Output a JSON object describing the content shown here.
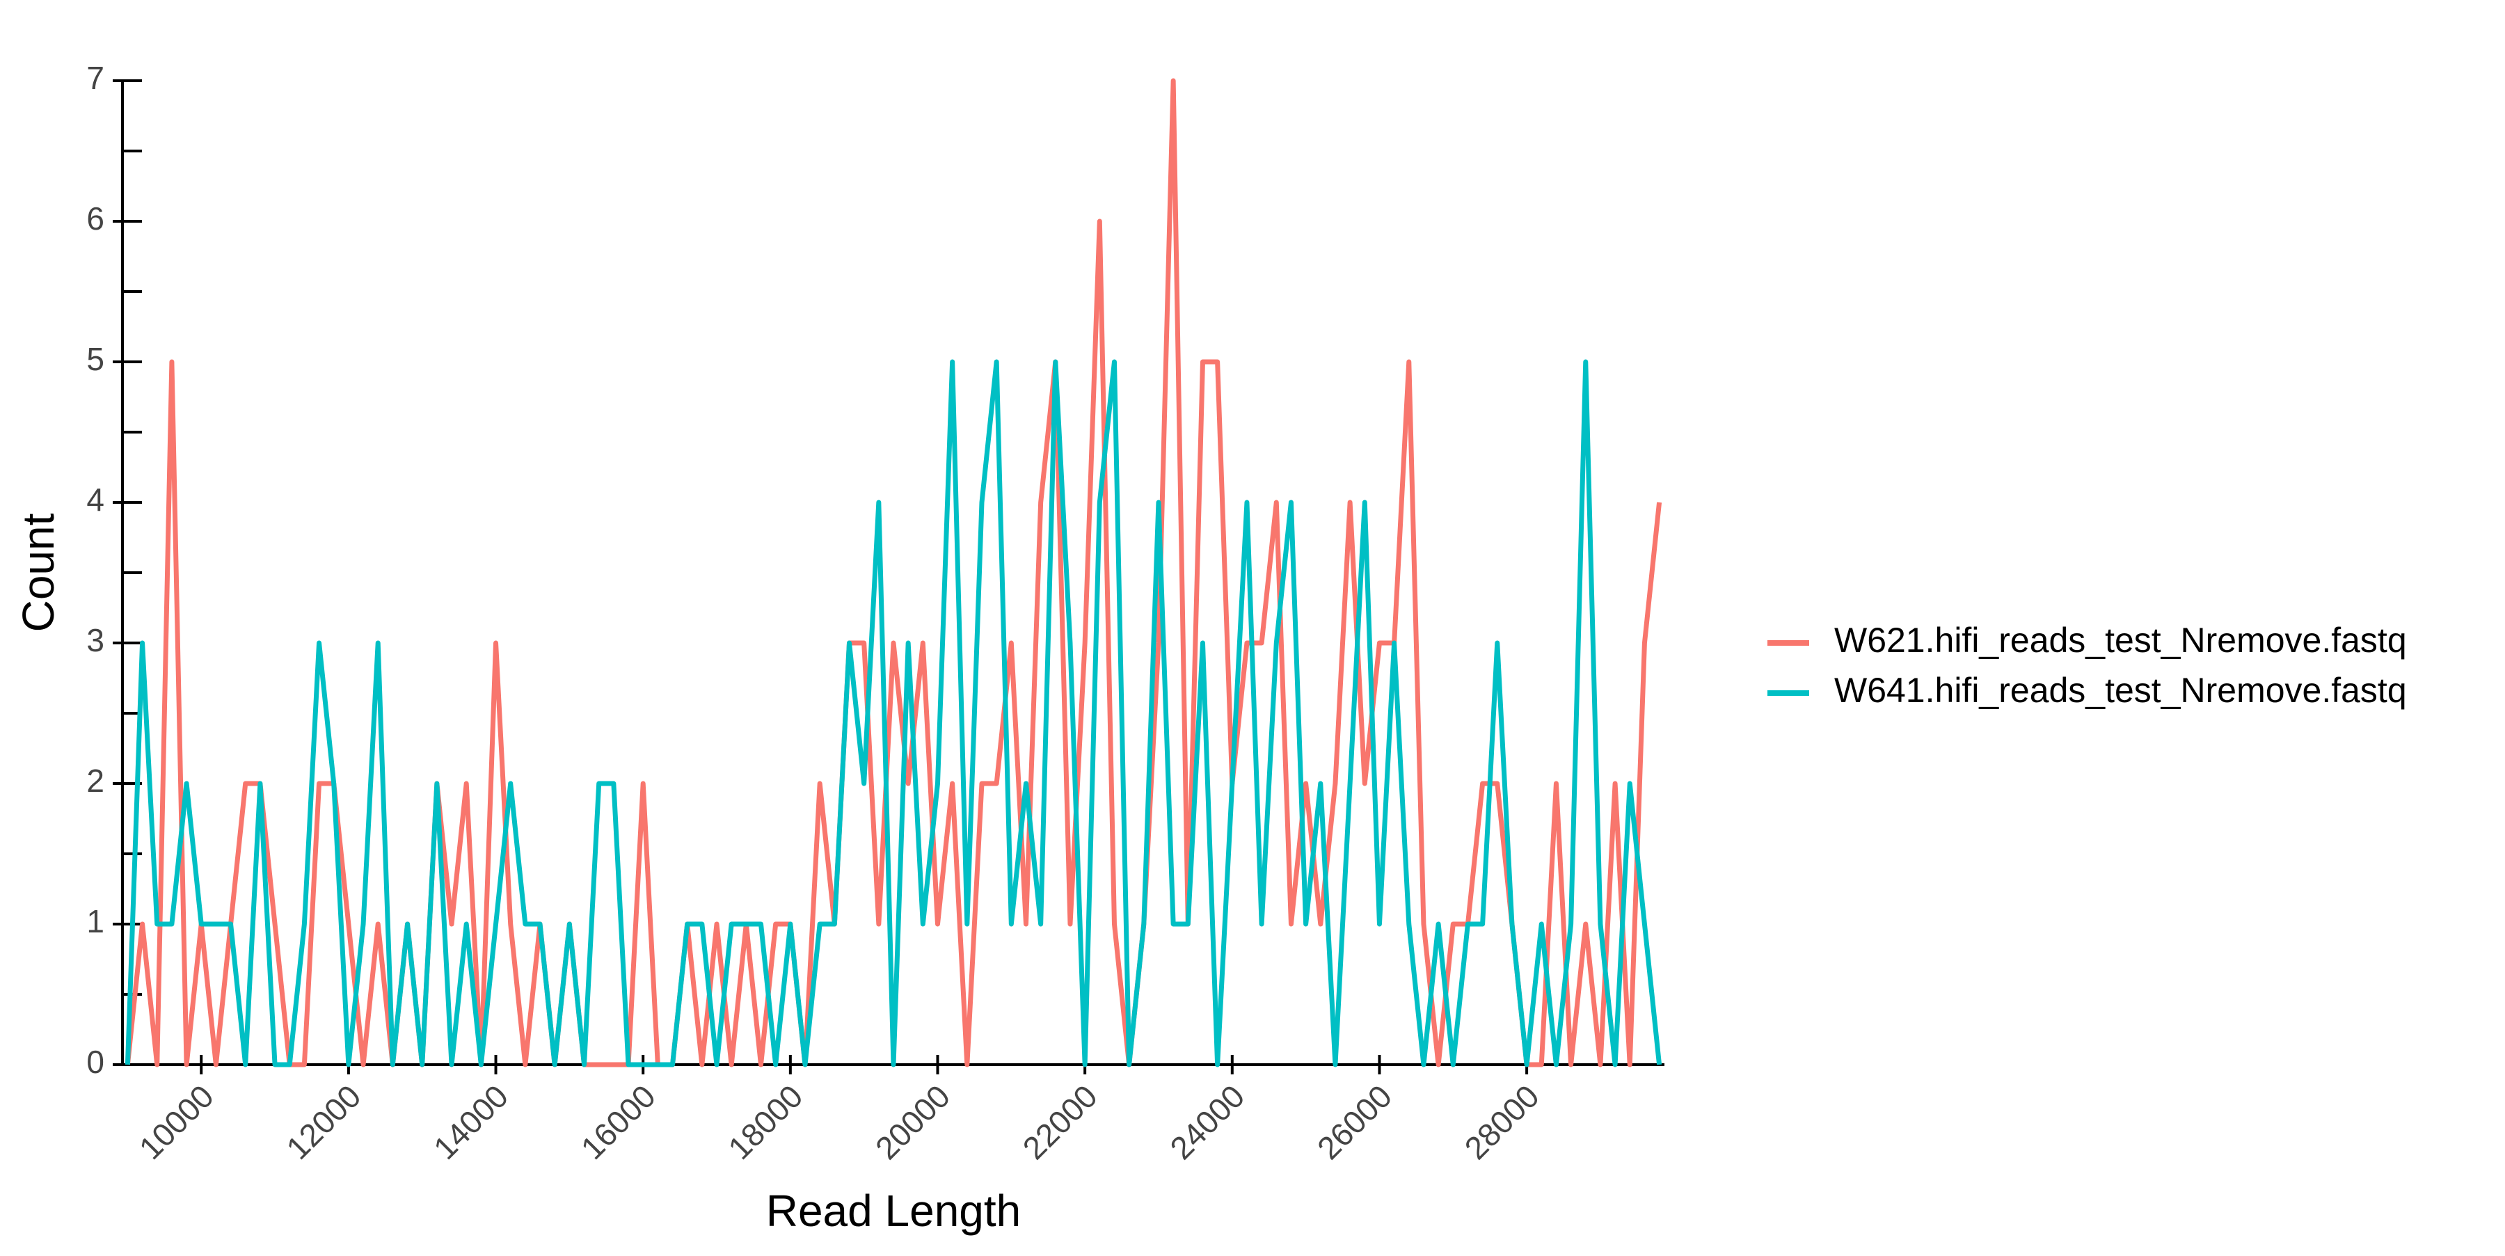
{
  "chart_data": {
    "type": "line",
    "x_label": "Read Length",
    "y_label": "Count",
    "x": [
      9000,
      9200,
      9400,
      9600,
      9800,
      10000,
      10200,
      10400,
      10600,
      10800,
      11000,
      11200,
      11400,
      11600,
      11800,
      12000,
      12200,
      12400,
      12600,
      12800,
      13000,
      13200,
      13400,
      13600,
      13800,
      14000,
      14200,
      14400,
      14600,
      14800,
      15000,
      15200,
      15400,
      15600,
      15800,
      16000,
      16200,
      16400,
      16600,
      16800,
      17000,
      17200,
      17400,
      17600,
      17800,
      18000,
      18200,
      18400,
      18600,
      18800,
      19000,
      19200,
      19400,
      19600,
      19800,
      20000,
      20200,
      20400,
      20600,
      20800,
      21000,
      21200,
      21400,
      21600,
      21800,
      22000,
      22200,
      22400,
      22600,
      22800,
      23000,
      23200,
      23400,
      23600,
      23800,
      24000,
      24200,
      24400,
      24600,
      24800,
      25000,
      25200,
      25400,
      25600,
      25800,
      26000,
      26200,
      26400,
      26600,
      26800,
      27000,
      27200,
      27400,
      27600,
      27800,
      28000,
      28200,
      28400,
      28600,
      28800,
      29000,
      29200,
      29400,
      29600,
      29800
    ],
    "series": [
      {
        "name": "W621.hifi_reads_test_Nremove.fastq",
        "color": "#F8766D",
        "values": [
          0,
          1,
          0,
          5,
          0,
          1,
          0,
          1,
          2,
          2,
          1,
          0,
          0,
          2,
          2,
          1,
          0,
          1,
          0,
          1,
          0,
          2,
          1,
          2,
          0,
          3,
          1,
          0,
          1,
          0,
          1,
          0,
          0,
          0,
          0,
          2,
          0,
          0,
          1,
          0,
          1,
          0,
          1,
          0,
          1,
          1,
          0,
          2,
          1,
          3,
          3,
          1,
          3,
          2,
          3,
          1,
          2,
          0,
          2,
          2,
          3,
          1,
          4,
          5,
          1,
          3,
          6,
          1,
          0,
          1,
          3,
          7,
          1,
          5,
          5,
          2,
          3,
          3,
          4,
          1,
          2,
          1,
          2,
          4,
          2,
          3,
          3,
          5,
          1,
          0,
          1,
          1,
          2,
          2,
          1,
          0,
          0,
          2,
          0,
          1,
          0,
          2,
          0,
          3,
          4
        ]
      },
      {
        "name": "W641.hifi_reads_test_Nremove.fastq",
        "color": "#00BFC4",
        "values": [
          0,
          3,
          1,
          1,
          2,
          1,
          1,
          1,
          0,
          2,
          0,
          0,
          1,
          3,
          2,
          0,
          1,
          3,
          0,
          1,
          0,
          2,
          0,
          1,
          0,
          1,
          2,
          1,
          1,
          0,
          1,
          0,
          2,
          2,
          0,
          0,
          0,
          0,
          1,
          1,
          0,
          1,
          1,
          1,
          0,
          1,
          0,
          1,
          1,
          3,
          2,
          4,
          0,
          3,
          1,
          2,
          5,
          1,
          4,
          5,
          1,
          2,
          1,
          5,
          3,
          0,
          4,
          5,
          0,
          1,
          4,
          1,
          1,
          3,
          0,
          2,
          4,
          1,
          3,
          4,
          1,
          2,
          0,
          2,
          4,
          1,
          3,
          1,
          0,
          1,
          0,
          1,
          1,
          3,
          1,
          0,
          1,
          0,
          1,
          5,
          1,
          0,
          2,
          1,
          0
        ]
      }
    ],
    "xlim": [
      8930,
      29870
    ],
    "ylim": [
      0,
      7
    ],
    "xticks": [
      10000,
      12000,
      14000,
      16000,
      18000,
      20000,
      22000,
      24000,
      26000,
      28000
    ],
    "yticks": [
      0,
      1,
      2,
      3,
      4,
      5,
      6,
      7
    ],
    "y_minor_ticks": [
      0.5,
      1.5,
      2.5,
      3.5,
      4.5,
      5.5,
      6.5
    ],
    "legend": "right"
  }
}
